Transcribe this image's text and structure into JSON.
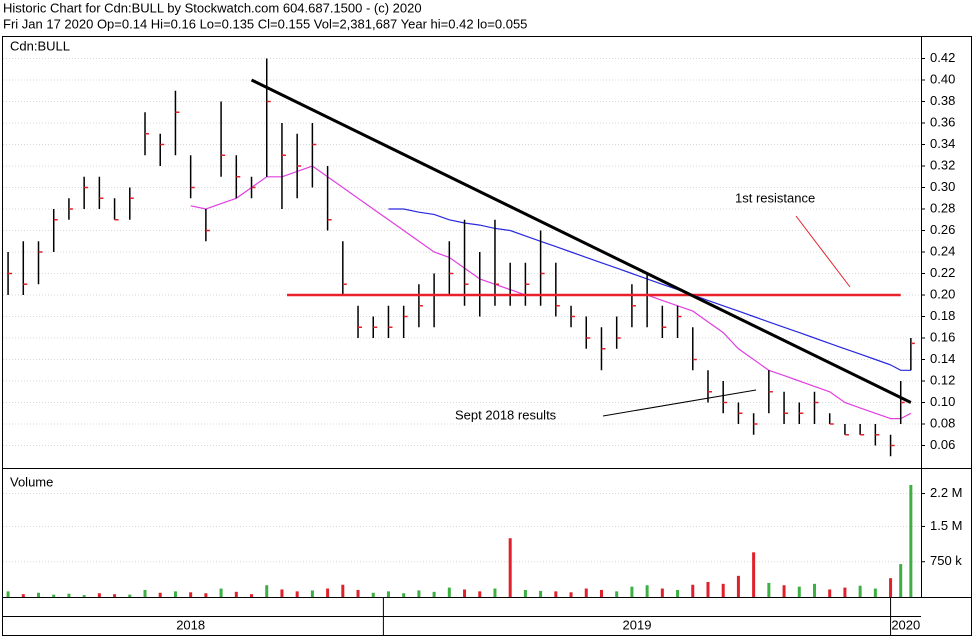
{
  "chart_data": {
    "type": "ohlc",
    "title": "Historic Chart for Cdn:BULL by Stockwatch.com 604.687.1500 - (c) 2020",
    "subtitle": "Fri Jan 17 2020  Op=0.14  Hi=0.16  Lo=0.135  Cl=0.155  Vol=2,381,687  Year hi=0.42  lo=0.055",
    "panel_labels": [
      "Cdn:BULL",
      "Volume"
    ],
    "x": [
      2018.26,
      2018.29,
      2018.32,
      2018.35,
      2018.38,
      2018.41,
      2018.44,
      2018.47,
      2018.5,
      2018.53,
      2018.56,
      2018.59,
      2018.62,
      2018.65,
      2018.68,
      2018.71,
      2018.74,
      2018.77,
      2018.8,
      2018.83,
      2018.86,
      2018.89,
      2018.92,
      2018.95,
      2018.98,
      2019.01,
      2019.04,
      2019.07,
      2019.1,
      2019.13,
      2019.16,
      2019.19,
      2019.22,
      2019.25,
      2019.28,
      2019.31,
      2019.34,
      2019.37,
      2019.4,
      2019.43,
      2019.46,
      2019.49,
      2019.52,
      2019.55,
      2019.58,
      2019.61,
      2019.64,
      2019.67,
      2019.7,
      2019.73,
      2019.76,
      2019.79,
      2019.82,
      2019.85,
      2019.88,
      2019.91,
      2019.94,
      2019.97,
      2020.0,
      2020.02,
      2020.04
    ],
    "high": [
      0.24,
      0.25,
      0.25,
      0.28,
      0.29,
      0.31,
      0.31,
      0.29,
      0.3,
      0.37,
      0.35,
      0.39,
      0.33,
      0.28,
      0.38,
      0.33,
      0.31,
      0.42,
      0.36,
      0.35,
      0.36,
      0.32,
      0.25,
      0.19,
      0.18,
      0.19,
      0.19,
      0.21,
      0.22,
      0.25,
      0.27,
      0.24,
      0.27,
      0.23,
      0.23,
      0.26,
      0.23,
      0.19,
      0.18,
      0.17,
      0.18,
      0.21,
      0.22,
      0.19,
      0.19,
      0.17,
      0.13,
      0.12,
      0.1,
      0.09,
      0.13,
      0.11,
      0.1,
      0.11,
      0.09,
      0.08,
      0.08,
      0.08,
      0.07,
      0.12,
      0.16
    ],
    "low": [
      0.2,
      0.2,
      0.21,
      0.24,
      0.27,
      0.28,
      0.28,
      0.27,
      0.27,
      0.33,
      0.32,
      0.33,
      0.29,
      0.25,
      0.31,
      0.29,
      0.29,
      0.31,
      0.28,
      0.29,
      0.3,
      0.26,
      0.2,
      0.16,
      0.16,
      0.16,
      0.16,
      0.17,
      0.17,
      0.2,
      0.19,
      0.18,
      0.19,
      0.19,
      0.19,
      0.19,
      0.18,
      0.17,
      0.15,
      0.13,
      0.15,
      0.17,
      0.17,
      0.16,
      0.16,
      0.13,
      0.1,
      0.09,
      0.08,
      0.07,
      0.09,
      0.08,
      0.08,
      0.08,
      0.08,
      0.07,
      0.07,
      0.06,
      0.05,
      0.08,
      0.13
    ],
    "close": [
      0.22,
      0.21,
      0.24,
      0.27,
      0.28,
      0.3,
      0.29,
      0.27,
      0.29,
      0.35,
      0.34,
      0.37,
      0.3,
      0.26,
      0.33,
      0.31,
      0.3,
      0.38,
      0.33,
      0.32,
      0.34,
      0.27,
      0.21,
      0.17,
      0.17,
      0.17,
      0.18,
      0.19,
      0.2,
      0.22,
      0.21,
      0.2,
      0.21,
      0.2,
      0.21,
      0.22,
      0.19,
      0.18,
      0.16,
      0.15,
      0.16,
      0.19,
      0.2,
      0.17,
      0.18,
      0.14,
      0.11,
      0.1,
      0.09,
      0.08,
      0.11,
      0.09,
      0.09,
      0.1,
      0.08,
      0.07,
      0.07,
      0.07,
      0.06,
      0.1,
      0.155
    ],
    "volume": [
      120000,
      60000,
      90000,
      50000,
      70000,
      40000,
      80000,
      60000,
      50000,
      150000,
      90000,
      120000,
      100000,
      80000,
      180000,
      110000,
      60000,
      250000,
      160000,
      120000,
      140000,
      180000,
      260000,
      150000,
      90000,
      120000,
      80000,
      140000,
      110000,
      200000,
      160000,
      120000,
      180000,
      1250000,
      150000,
      130000,
      120000,
      100000,
      180000,
      150000,
      120000,
      220000,
      250000,
      180000,
      150000,
      260000,
      320000,
      280000,
      450000,
      950000,
      300000,
      250000,
      220000,
      280000,
      160000,
      200000,
      240000,
      180000,
      400000,
      700000,
      2381687
    ],
    "up_color": "#3cb043",
    "down_color": "#e0202a",
    "bar_color": "#000000",
    "series": [
      {
        "color": "#e040e0",
        "values": [
          null,
          null,
          null,
          null,
          null,
          null,
          null,
          null,
          null,
          null,
          null,
          null,
          0.283,
          0.28,
          0.285,
          0.29,
          0.3,
          0.31,
          0.31,
          0.315,
          0.32,
          0.31,
          0.3,
          0.29,
          0.28,
          0.27,
          0.26,
          0.25,
          0.24,
          0.235,
          0.225,
          0.215,
          0.21,
          0.205,
          0.2,
          0.2,
          0.2,
          0.2,
          0.2,
          0.2,
          0.2,
          0.2,
          0.2,
          0.195,
          0.19,
          0.185,
          0.175,
          0.165,
          0.15,
          0.14,
          0.13,
          0.125,
          0.12,
          0.115,
          0.11,
          0.1,
          0.095,
          0.09,
          0.085,
          0.085,
          0.09
        ]
      },
      {
        "color": "#2828e0",
        "values": [
          null,
          null,
          null,
          null,
          null,
          null,
          null,
          null,
          null,
          null,
          null,
          null,
          null,
          null,
          null,
          null,
          null,
          null,
          null,
          null,
          null,
          null,
          null,
          null,
          null,
          0.28,
          0.28,
          0.277,
          0.275,
          0.27,
          0.267,
          0.265,
          0.262,
          0.26,
          0.255,
          0.25,
          0.245,
          0.24,
          0.235,
          0.23,
          0.225,
          0.22,
          0.215,
          0.21,
          0.205,
          0.2,
          0.195,
          0.19,
          0.185,
          0.18,
          0.175,
          0.17,
          0.165,
          0.16,
          0.155,
          0.15,
          0.145,
          0.14,
          0.135,
          0.13,
          0.13
        ]
      }
    ],
    "trend_line": {
      "x": [
        2018.74,
        2020.04
      ],
      "y": [
        0.4,
        0.1
      ],
      "color": "#000000"
    },
    "resistance_line": {
      "x": [
        2018.81,
        2020.02
      ],
      "y": 0.2,
      "color": "#e8202a"
    },
    "annotations": [
      {
        "text": "1st resistance",
        "color": "#e8202a"
      },
      {
        "text": "Sept 2018 results",
        "color": "#000000"
      }
    ],
    "xlim": [
      2018.25,
      2020.06
    ],
    "xticks": [
      {
        "value": 2018.62,
        "label": "2018"
      },
      {
        "value": 2019.5,
        "label": "2019"
      },
      {
        "value": 2020.03,
        "label": "2020"
      }
    ],
    "year_lines": [
      2019,
      2020
    ],
    "ylim": [
      0.04,
      0.44
    ],
    "yticks": [
      0.06,
      0.08,
      {
        "value": 0.1,
        "label": "0.10"
      },
      0.12,
      0.14,
      0.16,
      0.18,
      {
        "value": 0.2,
        "label": "0.20"
      },
      0.22,
      0.24,
      0.26,
      0.28,
      {
        "value": 0.3,
        "label": "0.30"
      },
      0.32,
      0.34,
      0.36,
      0.38,
      {
        "value": 0.4,
        "label": "0.40"
      },
      0.42
    ],
    "volume_ylim": [
      0,
      2700000
    ],
    "volume_yticks": [
      {
        "value": 750000,
        "label": "750 k"
      },
      {
        "value": 1500000,
        "label": "1.5 M"
      },
      {
        "value": 2200000,
        "label": "2.2 M"
      }
    ],
    "grid": true
  }
}
